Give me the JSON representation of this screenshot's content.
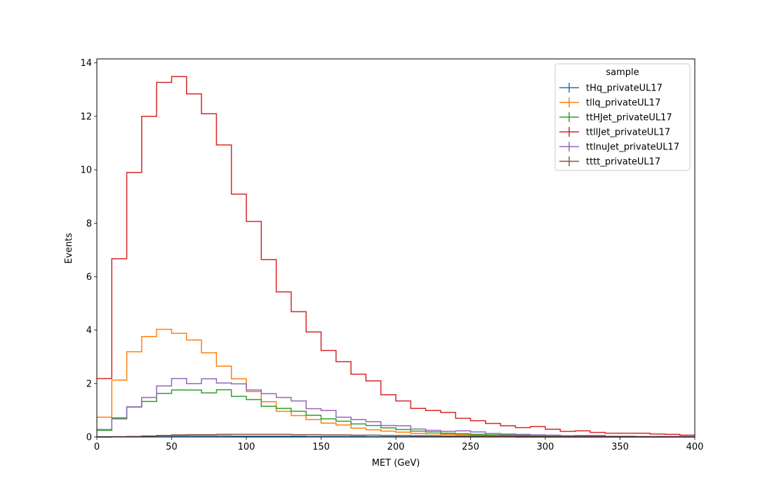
{
  "chart_data": {
    "type": "step",
    "xlabel": "MET (GeV)",
    "ylabel": "Events",
    "xlim": [
      0,
      400
    ],
    "ylim": [
      0,
      14.15
    ],
    "xticks": [
      0,
      50,
      100,
      150,
      200,
      250,
      300,
      350,
      400
    ],
    "yticks": [
      0,
      2,
      4,
      6,
      8,
      10,
      12,
      14
    ],
    "grid": false,
    "legend_title": "sample",
    "legend_position": "top-right",
    "bin_edges": [
      0,
      10,
      20,
      30,
      40,
      50,
      60,
      70,
      80,
      90,
      100,
      110,
      120,
      130,
      140,
      150,
      160,
      170,
      180,
      190,
      200,
      210,
      220,
      230,
      240,
      250,
      260,
      270,
      280,
      290,
      300,
      310,
      320,
      330,
      340,
      350,
      360,
      370,
      380,
      390,
      400
    ],
    "series": [
      {
        "name": "tHq_privateUL17",
        "color": "#1f77b4",
        "values": [
          0.01,
          0.01,
          0.02,
          0.03,
          0.04,
          0.04,
          0.04,
          0.04,
          0.04,
          0.03,
          0.03,
          0.03,
          0.03,
          0.03,
          0.02,
          0.02,
          0.02,
          0.02,
          0.01,
          0.01,
          0.01,
          0.01,
          0.01,
          0.01,
          0.01,
          0.01,
          0.01,
          0.01,
          0.0,
          0.0,
          0.0,
          0.0,
          0.0,
          0.0,
          0.0,
          0.0,
          0.0,
          0.0,
          0.0,
          0.0
        ]
      },
      {
        "name": "tllq_privateUL17",
        "color": "#ff7f0e",
        "values": [
          0.74,
          2.13,
          3.19,
          3.76,
          4.03,
          3.88,
          3.63,
          3.15,
          2.65,
          2.18,
          1.7,
          1.32,
          0.96,
          0.8,
          0.65,
          0.52,
          0.45,
          0.33,
          0.27,
          0.22,
          0.18,
          0.13,
          0.12,
          0.1,
          0.09,
          0.07,
          0.06,
          0.05,
          0.04,
          0.04,
          0.03,
          0.03,
          0.03,
          0.02,
          0.02,
          0.02,
          0.02,
          0.01,
          0.01,
          0.01
        ]
      },
      {
        "name": "ttHJet_privateUL17",
        "color": "#2ca02c",
        "values": [
          0.25,
          0.68,
          1.12,
          1.33,
          1.63,
          1.76,
          1.76,
          1.65,
          1.77,
          1.52,
          1.4,
          1.15,
          1.07,
          0.96,
          0.81,
          0.68,
          0.59,
          0.49,
          0.43,
          0.34,
          0.28,
          0.22,
          0.19,
          0.14,
          0.12,
          0.1,
          0.08,
          0.07,
          0.06,
          0.05,
          0.04,
          0.03,
          0.03,
          0.03,
          0.02,
          0.02,
          0.02,
          0.01,
          0.01,
          0.01
        ]
      },
      {
        "name": "ttllJet_privateUL17",
        "color": "#d62728",
        "values": [
          2.19,
          6.67,
          9.9,
          12.0,
          13.27,
          13.49,
          12.84,
          12.1,
          10.93,
          9.09,
          8.07,
          6.64,
          5.43,
          4.69,
          3.93,
          3.24,
          2.82,
          2.35,
          2.1,
          1.58,
          1.35,
          1.07,
          0.99,
          0.92,
          0.7,
          0.61,
          0.51,
          0.42,
          0.35,
          0.39,
          0.29,
          0.21,
          0.23,
          0.17,
          0.14,
          0.14,
          0.14,
          0.11,
          0.1,
          0.07
        ]
      },
      {
        "name": "ttlnuJet_privateUL17",
        "color": "#9467bd",
        "values": [
          0.28,
          0.72,
          1.13,
          1.48,
          1.91,
          2.19,
          2.0,
          2.18,
          2.02,
          1.99,
          1.76,
          1.62,
          1.48,
          1.35,
          1.06,
          0.99,
          0.74,
          0.65,
          0.57,
          0.43,
          0.42,
          0.3,
          0.25,
          0.21,
          0.23,
          0.19,
          0.13,
          0.11,
          0.1,
          0.08,
          0.07,
          0.05,
          0.06,
          0.06,
          0.03,
          0.03,
          0.02,
          0.02,
          0.02,
          0.02
        ]
      },
      {
        "name": "tttt_privateUL17",
        "color": "#8c564b",
        "values": [
          0.0,
          0.01,
          0.02,
          0.04,
          0.06,
          0.08,
          0.09,
          0.09,
          0.1,
          0.1,
          0.1,
          0.1,
          0.1,
          0.09,
          0.09,
          0.08,
          0.08,
          0.07,
          0.07,
          0.06,
          0.06,
          0.05,
          0.05,
          0.04,
          0.04,
          0.04,
          0.03,
          0.03,
          0.03,
          0.02,
          0.02,
          0.02,
          0.02,
          0.02,
          0.01,
          0.01,
          0.01,
          0.01,
          0.01,
          0.01
        ]
      }
    ]
  }
}
